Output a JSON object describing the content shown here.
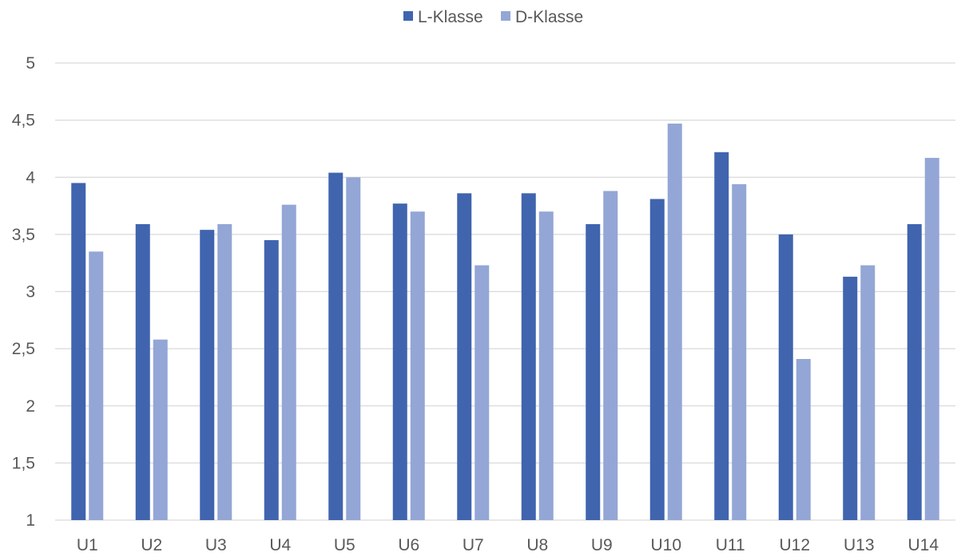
{
  "chart_data": {
    "type": "bar",
    "categories": [
      "U1",
      "U2",
      "U3",
      "U4",
      "U5",
      "U6",
      "U7",
      "U8",
      "U9",
      "U10",
      "U11",
      "U12",
      "U13",
      "U14"
    ],
    "series": [
      {
        "name": "L-Klasse",
        "color": "#4064ae",
        "values": [
          3.95,
          3.59,
          3.54,
          3.45,
          4.04,
          3.77,
          3.86,
          3.86,
          3.59,
          3.81,
          4.22,
          3.5,
          3.13,
          3.59
        ]
      },
      {
        "name": "D-Klasse",
        "color": "#93a6d5",
        "values": [
          3.35,
          2.58,
          3.59,
          3.76,
          4.0,
          3.7,
          3.23,
          3.7,
          3.88,
          4.47,
          3.94,
          2.41,
          3.23,
          4.17
        ]
      }
    ],
    "ylim": [
      1,
      5
    ],
    "yticks": [
      "1",
      "1,5",
      "2",
      "2,5",
      "3",
      "3,5",
      "4",
      "4,5",
      "5"
    ],
    "ytick_values": [
      1,
      1.5,
      2,
      2.5,
      3,
      3.5,
      4,
      4.5,
      5
    ],
    "grid": true,
    "legend_position": "top-center",
    "title": "",
    "xlabel": "",
    "ylabel": ""
  }
}
